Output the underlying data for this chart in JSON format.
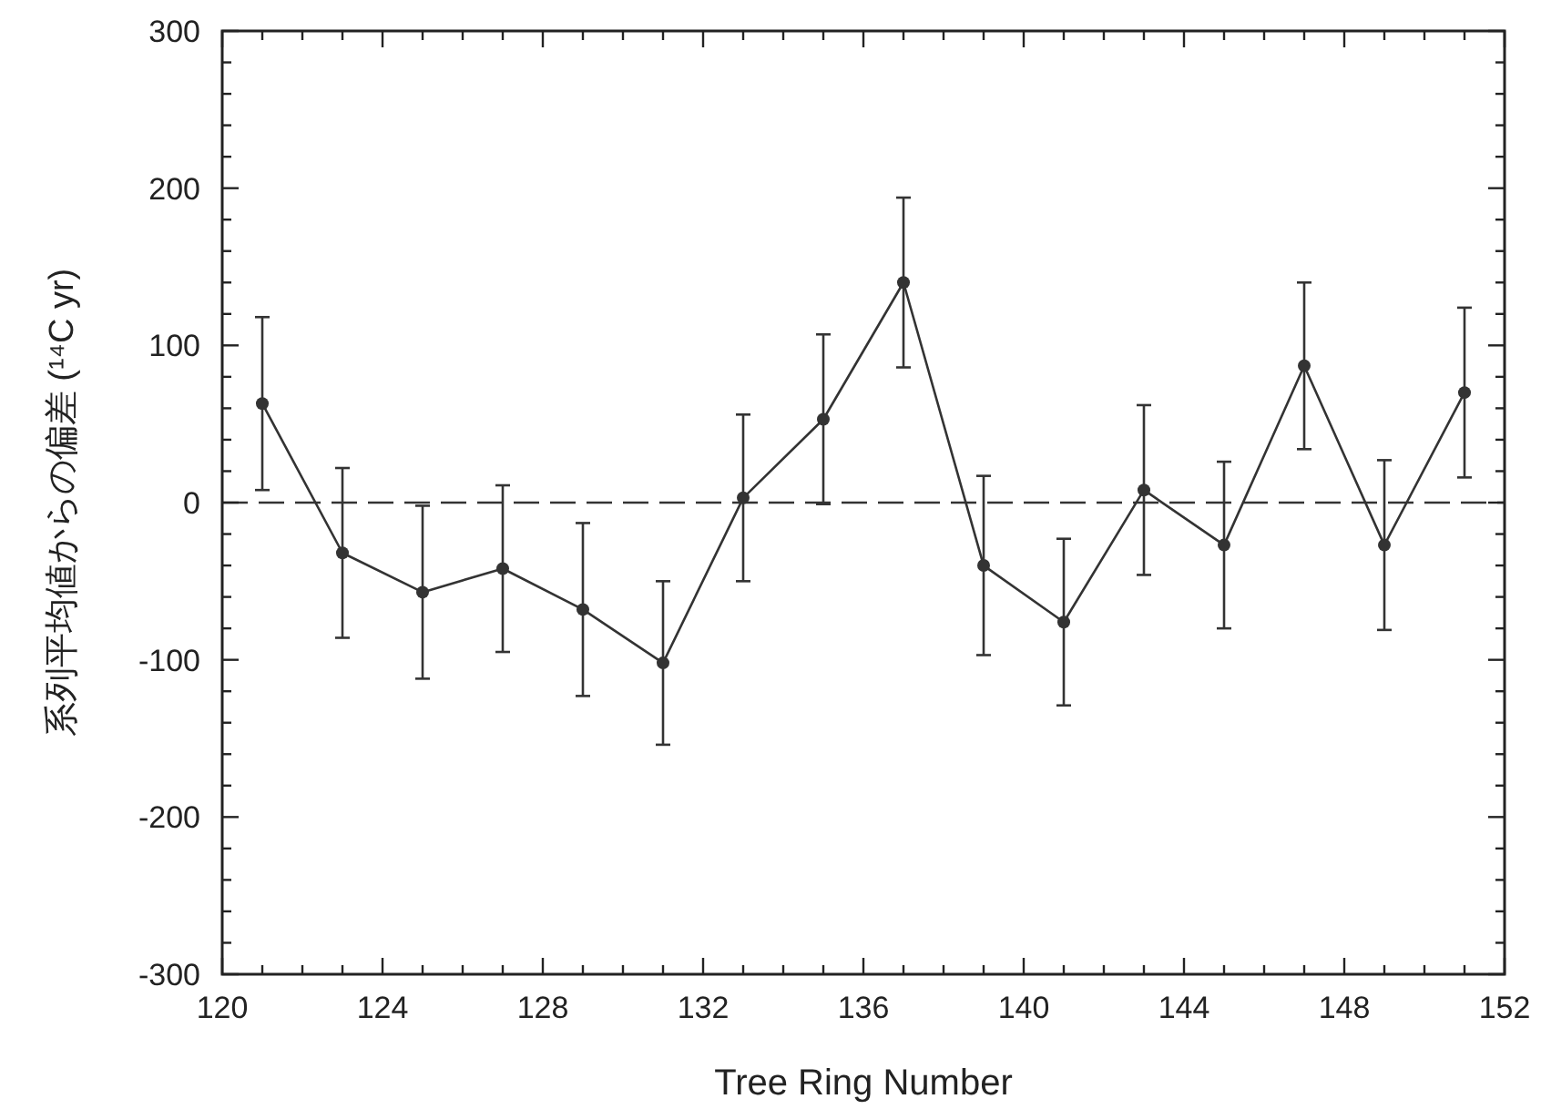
{
  "chart_data": {
    "type": "line",
    "xlabel": "Tree Ring Number",
    "ylabel": "系列平均値からの偏差 (¹⁴C yr)",
    "x": [
      121,
      123,
      125,
      127,
      129,
      131,
      133,
      135,
      137,
      139,
      141,
      143,
      145,
      147,
      149,
      151
    ],
    "series": [
      {
        "color": "#333333",
        "values": [
          63,
          -32,
          -57,
          -42,
          -68,
          -102,
          3,
          53,
          140,
          -40,
          -76,
          8,
          -27,
          87,
          -27,
          70
        ],
        "errors": [
          55,
          54,
          55,
          53,
          55,
          52,
          53,
          54,
          54,
          57,
          53,
          54,
          53,
          53,
          54,
          54
        ]
      }
    ],
    "marker": "circle",
    "line_style": "solid",
    "grid": false,
    "ref_lines": [
      {
        "axis": "y",
        "value": 0,
        "line_style": "dashed",
        "color": "#333333"
      }
    ],
    "xlim": [
      120,
      152
    ],
    "ylim": [
      -300,
      300
    ],
    "xticks": [
      120,
      {
        "value": 121,
        "label": null
      },
      {
        "value": 122,
        "label": null
      },
      {
        "value": 123,
        "label": null
      },
      124,
      {
        "value": 125,
        "label": null
      },
      {
        "value": 126,
        "label": null
      },
      {
        "value": 127,
        "label": null
      },
      128,
      {
        "value": 129,
        "label": null
      },
      {
        "value": 130,
        "label": null
      },
      {
        "value": 131,
        "label": null
      },
      132,
      {
        "value": 133,
        "label": null
      },
      {
        "value": 134,
        "label": null
      },
      {
        "value": 135,
        "label": null
      },
      136,
      {
        "value": 137,
        "label": null
      },
      {
        "value": 138,
        "label": null
      },
      {
        "value": 139,
        "label": null
      },
      140,
      {
        "value": 141,
        "label": null
      },
      {
        "value": 142,
        "label": null
      },
      {
        "value": 143,
        "label": null
      },
      144,
      {
        "value": 145,
        "label": null
      },
      {
        "value": 146,
        "label": null
      },
      {
        "value": 147,
        "label": null
      },
      148,
      {
        "value": 149,
        "label": null
      },
      {
        "value": 150,
        "label": null
      },
      {
        "value": 151,
        "label": null
      },
      152
    ],
    "yticks": [
      -300,
      {
        "value": -280,
        "label": null
      },
      {
        "value": -260,
        "label": null
      },
      {
        "value": -240,
        "label": null
      },
      {
        "value": -220,
        "label": null
      },
      -200,
      {
        "value": -180,
        "label": null
      },
      {
        "value": -160,
        "label": null
      },
      {
        "value": -140,
        "label": null
      },
      {
        "value": -120,
        "label": null
      },
      -100,
      {
        "value": -80,
        "label": null
      },
      {
        "value": -60,
        "label": null
      },
      {
        "value": -40,
        "label": null
      },
      {
        "value": -20,
        "label": null
      },
      0,
      {
        "value": 20,
        "label": null
      },
      {
        "value": 40,
        "label": null
      },
      {
        "value": 60,
        "label": null
      },
      {
        "value": 80,
        "label": null
      },
      100,
      {
        "value": 120,
        "label": null
      },
      {
        "value": 140,
        "label": null
      },
      {
        "value": 160,
        "label": null
      },
      {
        "value": 180,
        "label": null
      },
      200,
      {
        "value": 220,
        "label": null
      },
      {
        "value": 240,
        "label": null
      },
      {
        "value": 260,
        "label": null
      },
      {
        "value": 280,
        "label": null
      },
      300
    ]
  }
}
